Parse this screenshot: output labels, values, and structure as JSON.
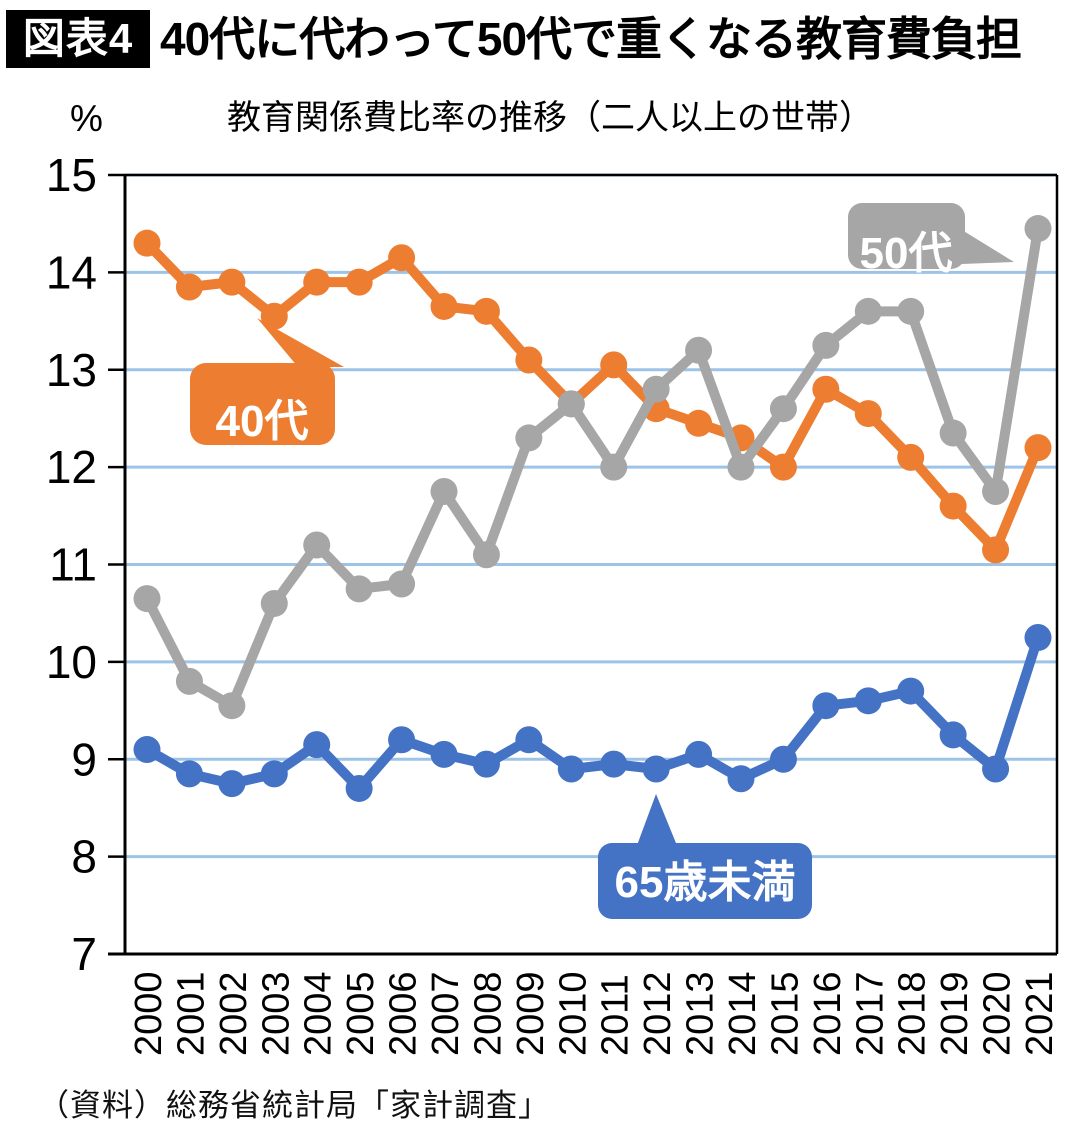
{
  "header": {
    "badge": "図表4",
    "title": "40代に代わって50代で重くなる教育費負担"
  },
  "chart": {
    "subtitle": "教育関係費比率の推移（二人以上の世帯）",
    "unit_label": "%",
    "source": "（資料）総務省統計局「家計調査」"
  },
  "chart_data": {
    "type": "line",
    "title": "教育関係費比率の推移（二人以上の世帯）",
    "xlabel": "",
    "ylabel": "%",
    "ylim": [
      7,
      15
    ],
    "yticks": [
      15,
      14,
      13,
      12,
      11,
      10,
      9,
      8,
      7
    ],
    "grid": true,
    "x": [
      2000,
      2001,
      2002,
      2003,
      2004,
      2005,
      2006,
      2007,
      2008,
      2009,
      2010,
      2011,
      2012,
      2013,
      2014,
      2015,
      2016,
      2017,
      2018,
      2019,
      2020,
      2021
    ],
    "series": [
      {
        "name": "40代",
        "color": "#ED7D31",
        "values": [
          14.3,
          13.85,
          13.9,
          13.55,
          13.9,
          13.9,
          14.15,
          13.65,
          13.6,
          13.1,
          12.65,
          13.05,
          12.6,
          12.45,
          12.3,
          12.0,
          12.8,
          12.55,
          12.1,
          11.6,
          11.15,
          12.2
        ]
      },
      {
        "name": "50代",
        "color": "#A6A6A6",
        "values": [
          10.65,
          9.8,
          9.55,
          10.6,
          11.2,
          10.75,
          10.8,
          11.75,
          11.1,
          12.3,
          12.65,
          12.0,
          12.8,
          13.2,
          12.0,
          12.6,
          13.25,
          13.6,
          13.6,
          12.35,
          11.75,
          14.45
        ]
      },
      {
        "name": "65歳未満",
        "color": "#4472C4",
        "values": [
          9.1,
          8.85,
          8.75,
          8.85,
          9.15,
          8.7,
          9.2,
          9.05,
          8.95,
          9.2,
          8.9,
          8.95,
          8.9,
          9.05,
          8.8,
          9.0,
          9.55,
          9.6,
          9.7,
          9.25,
          8.9,
          10.25
        ]
      }
    ],
    "callouts": [
      {
        "text": "40代",
        "series": "40代",
        "anchor_year": 2003
      },
      {
        "text": "50代",
        "series": "50代",
        "anchor_year": 2021
      },
      {
        "text": "65歳未満",
        "series": "65歳未満",
        "anchor_year": 2012
      }
    ],
    "colors": {
      "gridline": "#9DC3E6",
      "axis": "#000000"
    },
    "legend_position": "callout-labels-on-chart"
  }
}
